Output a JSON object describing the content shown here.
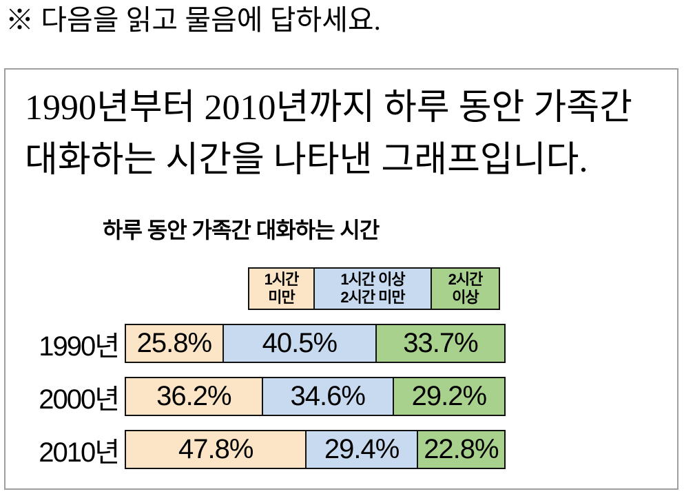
{
  "page": {
    "instruction": "※ 다음을 읽고 물음에 답하세요."
  },
  "description": {
    "line1": "1990년부터 2010년까지 하루 동안 가족간",
    "line2": "대화하는 시간을 나타낸 그래프입니다."
  },
  "colors": {
    "segment_peach": "#FBE5C6",
    "segment_blue": "#C8DAF0",
    "segment_green": "#A9D18E",
    "bar_border": "#111111",
    "box_border": "#9e9e9e",
    "text": "#000000"
  },
  "chart_data": {
    "type": "bar",
    "stacked": true,
    "orientation": "horizontal",
    "title": "하루 동안 가족간 대화하는 시간",
    "unit": "%",
    "xlim": [
      0,
      100
    ],
    "grid": false,
    "legend_position": "top-right",
    "categories": [
      "1990년",
      "2000년",
      "2010년"
    ],
    "series": [
      {
        "name": "1시간 미만",
        "color": "#FBE5C6",
        "values": [
          25.8,
          36.2,
          47.8
        ]
      },
      {
        "name": "1시간 이상 2시간 미만",
        "color": "#C8DAF0",
        "values": [
          40.5,
          34.6,
          29.4
        ]
      },
      {
        "name": "2시간 이상",
        "color": "#A9D18E",
        "values": [
          33.7,
          29.2,
          22.8
        ]
      }
    ],
    "segment_labels": [
      [
        "25.8%",
        "40.5%",
        "33.7%"
      ],
      [
        "36.2%",
        "34.6%",
        "29.2%"
      ],
      [
        "47.8%",
        "29.4%",
        "22.8%"
      ]
    ],
    "legend": {
      "items": [
        {
          "line1": "1시간",
          "line2": "미만",
          "color": "#FBE5C6"
        },
        {
          "line1": "1시간 이상",
          "line2": "2시간 미만",
          "color": "#C8DAF0"
        },
        {
          "line1": "2시간",
          "line2": "이상",
          "color": "#A9D18E"
        }
      ]
    }
  }
}
